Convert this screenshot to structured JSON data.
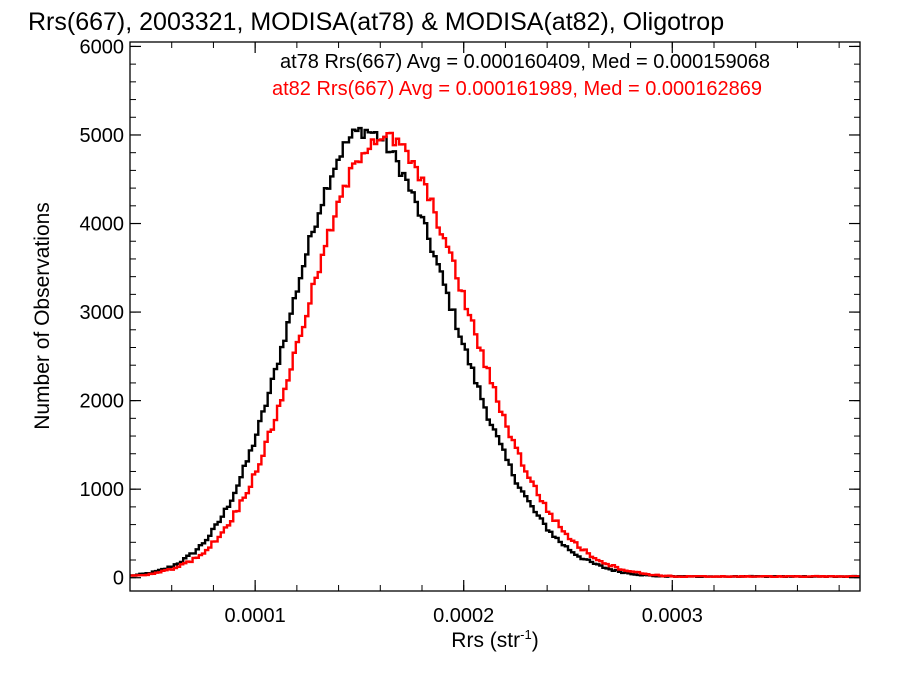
{
  "chart_data": {
    "type": "step-histogram",
    "title": "Rrs(667), 2003321, MODISA(at78) & MODISA(at82), Oligotrop",
    "xlabel_main": "Rrs (str",
    "xlabel_sup": "-1",
    "xlabel_close": ")",
    "ylabel": "Number of Observations",
    "xlim": [
      4e-05,
      0.00039
    ],
    "ylim": [
      -150,
      6050
    ],
    "x_ticks": [
      {
        "value": 0.0001,
        "label": "0.0001"
      },
      {
        "value": 0.0002,
        "label": "0.0002"
      },
      {
        "value": 0.0003,
        "label": "0.0003"
      }
    ],
    "y_ticks": [
      {
        "value": 0,
        "label": "0"
      },
      {
        "value": 1000,
        "label": "1000"
      },
      {
        "value": 2000,
        "label": "2000"
      },
      {
        "value": 3000,
        "label": "3000"
      },
      {
        "value": 4000,
        "label": "4000"
      },
      {
        "value": 5000,
        "label": "5000"
      },
      {
        "value": 6000,
        "label": "6000"
      }
    ],
    "series": [
      {
        "name": "at78",
        "legend": "at78 Rrs(667) Avg = 0.000160409, Med = 0.000159068",
        "color": "#000000",
        "avg": 0.000160409,
        "median": 0.000159068,
        "peak_x": 0.000152,
        "peak_y": 5050,
        "sigma_left": 3.4e-05,
        "sigma_right": 4.2e-05
      },
      {
        "name": "at82",
        "legend": "at82 Rrs(667) Avg = 0.000161989, Med = 0.000162869",
        "color": "#ff0000",
        "avg": 0.000161989,
        "median": 0.000162869,
        "peak_x": 0.000161,
        "peak_y": 4980,
        "sigma_left": 3.6e-05,
        "sigma_right": 4.1e-05
      }
    ],
    "bin_width": 1.5e-06
  }
}
